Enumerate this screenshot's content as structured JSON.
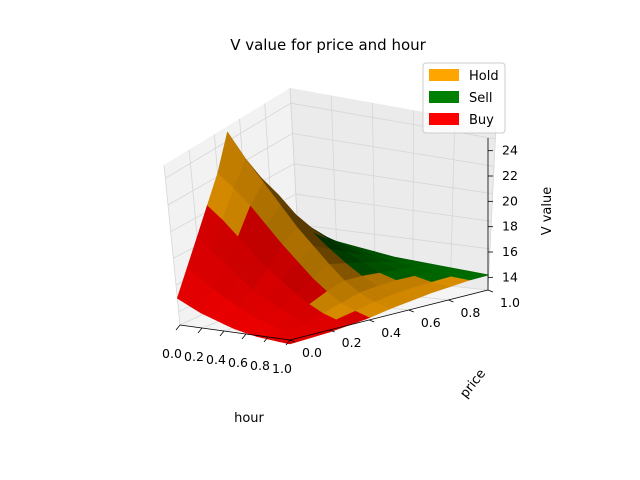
{
  "chart_data": {
    "type": "surface",
    "title": "V value for price and hour",
    "xlabel": "hour",
    "ylabel": "price",
    "zlabel": "V value",
    "xlim": [
      0,
      1
    ],
    "ylim": [
      0,
      1
    ],
    "zlim": [
      13,
      25
    ],
    "x_ticks": [
      "0.0",
      "0.2",
      "0.4",
      "0.6",
      "0.8",
      "1.0"
    ],
    "y_ticks": [
      "0.0",
      "0.2",
      "0.4",
      "0.6",
      "0.8",
      "1.0"
    ],
    "z_ticks": [
      "14",
      "16",
      "18",
      "20",
      "22",
      "24"
    ],
    "grid": true,
    "legend_position": "top-right",
    "legend": [
      {
        "name": "Hold",
        "color": "#ffa500"
      },
      {
        "name": "Sell",
        "color": "#008000"
      },
      {
        "name": "Buy",
        "color": "#ff0000"
      }
    ],
    "hours": [
      0.0,
      0.1,
      0.2,
      0.3,
      0.4,
      0.5,
      0.6,
      0.7,
      0.8,
      0.9,
      1.0
    ],
    "prices": [
      0.0,
      0.1,
      0.2,
      0.3,
      0.4,
      0.5,
      0.6,
      0.7,
      0.8,
      0.9,
      1.0
    ],
    "values": [
      [
        15.0,
        16.8,
        18.6,
        20.4,
        22.2,
        24.6,
        22.4,
        19.8,
        18.0,
        16.5,
        15.6
      ],
      [
        14.6,
        16.2,
        17.8,
        19.6,
        21.4,
        23.0,
        21.2,
        19.0,
        17.5,
        16.2,
        15.4
      ],
      [
        14.2,
        15.6,
        17.0,
        18.6,
        20.4,
        21.6,
        20.2,
        18.4,
        17.0,
        15.9,
        15.2
      ],
      [
        13.9,
        15.0,
        16.2,
        17.6,
        19.2,
        20.2,
        19.0,
        17.6,
        16.5,
        15.6,
        15.0
      ],
      [
        13.6,
        14.5,
        15.4,
        16.6,
        18.0,
        18.8,
        17.9,
        16.9,
        16.0,
        15.3,
        14.8
      ],
      [
        13.3,
        14.0,
        14.8,
        15.8,
        16.9,
        17.6,
        16.9,
        16.2,
        15.6,
        15.0,
        14.6
      ],
      [
        13.1,
        13.6,
        14.2,
        15.0,
        15.8,
        16.4,
        16.0,
        15.6,
        15.2,
        14.8,
        14.5
      ],
      [
        12.9,
        13.3,
        13.7,
        14.3,
        14.9,
        15.3,
        15.2,
        15.0,
        14.8,
        14.6,
        14.4
      ],
      [
        12.8,
        13.0,
        13.3,
        13.7,
        14.1,
        14.5,
        14.6,
        14.6,
        14.5,
        14.4,
        14.3
      ],
      [
        12.7,
        12.8,
        13.0,
        13.3,
        13.6,
        13.9,
        14.1,
        14.2,
        14.2,
        14.2,
        14.2
      ],
      [
        12.6,
        12.7,
        12.8,
        13.0,
        13.2,
        13.5,
        13.7,
        13.9,
        14.0,
        14.1,
        14.1
      ]
    ],
    "actions": [
      [
        "Buy",
        "Buy",
        "Buy",
        "Hold",
        "Hold",
        "Hold",
        "Hold",
        "Hold",
        "Sell",
        "Sell",
        "Sell"
      ],
      [
        "Buy",
        "Buy",
        "Buy",
        "Hold",
        "Hold",
        "Hold",
        "Hold",
        "Hold",
        "Sell",
        "Sell",
        "Sell"
      ],
      [
        "Buy",
        "Buy",
        "Buy",
        "Buy",
        "Hold",
        "Hold",
        "Hold",
        "Sell",
        "Sell",
        "Sell",
        "Sell"
      ],
      [
        "Buy",
        "Buy",
        "Buy",
        "Buy",
        "Hold",
        "Hold",
        "Hold",
        "Sell",
        "Sell",
        "Sell",
        "Sell"
      ],
      [
        "Buy",
        "Buy",
        "Buy",
        "Buy",
        "Hold",
        "Hold",
        "Sell",
        "Sell",
        "Sell",
        "Sell",
        "Sell"
      ],
      [
        "Buy",
        "Buy",
        "Buy",
        "Buy",
        "Hold",
        "Hold",
        "Sell",
        "Sell",
        "Sell",
        "Sell",
        "Sell"
      ],
      [
        "Buy",
        "Buy",
        "Buy",
        "Buy",
        "Hold",
        "Hold",
        "Sell",
        "Sell",
        "Sell",
        "Sell",
        "Sell"
      ],
      [
        "Buy",
        "Buy",
        "Buy",
        "Hold",
        "Hold",
        "Hold",
        "Hold",
        "Sell",
        "Sell",
        "Sell",
        "Sell"
      ],
      [
        "Buy",
        "Buy",
        "Buy",
        "Hold",
        "Hold",
        "Hold",
        "Hold",
        "Hold",
        "Sell",
        "Sell",
        "Sell"
      ],
      [
        "Buy",
        "Buy",
        "Buy",
        "Buy",
        "Hold",
        "Hold",
        "Hold",
        "Hold",
        "Hold",
        "Sell",
        "Sell"
      ],
      [
        "Buy",
        "Buy",
        "Buy",
        "Buy",
        "Buy",
        "Hold",
        "Hold",
        "Hold",
        "Hold",
        "Sell",
        "Sell"
      ]
    ]
  }
}
